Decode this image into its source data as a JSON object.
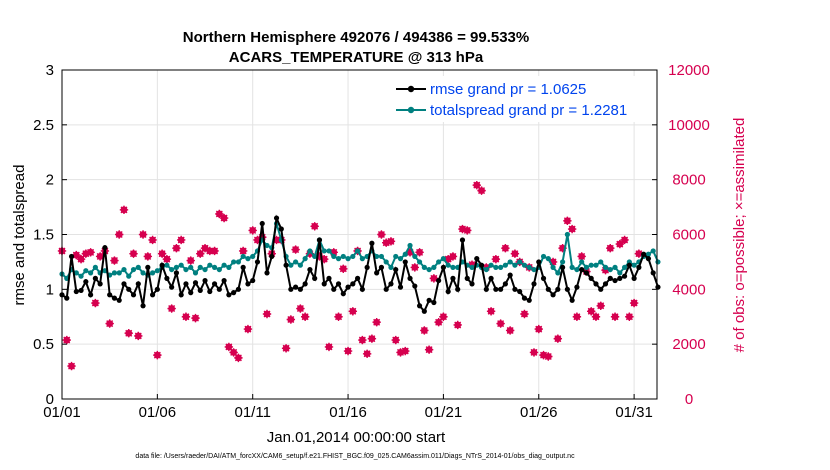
{
  "chart_data": {
    "type": "line",
    "title_line1": "Northern Hemisphere 492076 / 494386 = 99.533%",
    "title_line2": "ACARS_TEMPERATURE @ 313 hPa",
    "xlabel": "Jan.01,2014 00:00:00 start",
    "ylabel_left": "rmse and totalspread",
    "ylabel_right": "# of obs: o=possible; ×=assimilated",
    "footnote": "data file: /Users/raeder/DAI/ATM_forcXX/CAM6_setup/f.e21.FHIST_BGC.f09_025.CAM6assim.011/Diags_NTrS_2014-01/obs_diag_output.nc",
    "x_tick_labels": [
      "01/01",
      "01/06",
      "01/11",
      "01/16",
      "01/21",
      "01/26",
      "01/31"
    ],
    "x_tick_days": [
      1,
      6,
      11,
      16,
      21,
      26,
      31
    ],
    "xlim": [
      1,
      32.2
    ],
    "ylim_left": [
      0,
      3
    ],
    "left_ticks": [
      "0",
      "0.5",
      "1",
      "1.5",
      "2",
      "2.5",
      "3"
    ],
    "ylim_right": [
      0,
      12000
    ],
    "right_ticks": [
      "0",
      "2000",
      "4000",
      "6000",
      "8000",
      "10000",
      "12000"
    ],
    "colors": {
      "rmse": "#000000",
      "spread": "#008080",
      "obs": "#d6004f",
      "legend_text": "#0044ee"
    },
    "legend": {
      "rmse": "rmse grand pr = 1.0625",
      "spread": "totalspread grand pr = 1.2281"
    },
    "series": [
      {
        "name": "rmse",
        "values": [
          0.95,
          0.92,
          1.3,
          0.98,
          0.99,
          1.07,
          0.95,
          1.1,
          1.05,
          1.38,
          0.95,
          0.92,
          0.9,
          1.05,
          1.0,
          0.95,
          1.05,
          0.85,
          1.2,
          0.95,
          1.0,
          1.22,
          1.1,
          1.02,
          1.15,
          0.95,
          1.05,
          0.97,
          1.06,
          0.99,
          1.08,
          0.98,
          1.05,
          1.0,
          1.08,
          0.95,
          0.97,
          1.0,
          1.2,
          1.05,
          1.08,
          1.25,
          1.6,
          1.15,
          1.3,
          1.65,
          1.55,
          1.22,
          1.0,
          1.02,
          1.0,
          1.05,
          1.18,
          1.1,
          1.45,
          1.05,
          1.1,
          1.0,
          1.05,
          0.96,
          1.02,
          1.05,
          1.1,
          1.0,
          1.2,
          1.42,
          1.15,
          1.2,
          1.0,
          1.05,
          1.18,
          1.02,
          1.25,
          1.1,
          1.03,
          0.85,
          0.8,
          0.9,
          0.88,
          1.08,
          1.2,
          0.98,
          1.1,
          1.0,
          1.45,
          1.1,
          1.05,
          1.28,
          1.22,
          1.0,
          1.1,
          1.0,
          1.0,
          1.05,
          1.13,
          1.0,
          0.98,
          0.92,
          0.9,
          1.05,
          1.25,
          1.1,
          1.0,
          0.95,
          1.0,
          1.2,
          1.0,
          0.9,
          1.02,
          1.18,
          1.15,
          1.1,
          1.05,
          1.0,
          1.05,
          1.1,
          1.08,
          1.1,
          1.12,
          1.22,
          1.1,
          1.2,
          1.32,
          1.28,
          1.15,
          1.02
        ],
        "t_start": 1.0,
        "dt": 0.25
      },
      {
        "name": "totalspread",
        "values": [
          1.14,
          1.1,
          1.18,
          1.15,
          1.12,
          1.17,
          1.15,
          1.2,
          1.15,
          1.17,
          1.13,
          1.15,
          1.15,
          1.18,
          1.12,
          1.18,
          1.2,
          1.15,
          1.13,
          1.15,
          1.17,
          1.2,
          1.22,
          1.18,
          1.2,
          1.22,
          1.18,
          1.2,
          1.15,
          1.2,
          1.18,
          1.22,
          1.2,
          1.18,
          1.22,
          1.2,
          1.25,
          1.25,
          1.3,
          1.28,
          1.3,
          1.35,
          1.45,
          1.4,
          1.38,
          1.6,
          1.45,
          1.3,
          1.22,
          1.25,
          1.22,
          1.28,
          1.35,
          1.3,
          1.45,
          1.35,
          1.35,
          1.3,
          1.28,
          1.3,
          1.28,
          1.3,
          1.35,
          1.28,
          1.3,
          1.35,
          1.3,
          1.3,
          1.25,
          1.2,
          1.3,
          1.28,
          1.32,
          1.4,
          1.3,
          1.25,
          1.2,
          1.18,
          1.2,
          1.25,
          1.28,
          1.22,
          1.2,
          1.2,
          1.25,
          1.22,
          1.2,
          1.22,
          1.2,
          1.18,
          1.22,
          1.2,
          1.2,
          1.22,
          1.25,
          1.22,
          1.25,
          1.22,
          1.2,
          1.18,
          1.2,
          1.3,
          1.28,
          1.2,
          1.15,
          1.25,
          1.5,
          1.2,
          1.18,
          1.25,
          1.2,
          1.22,
          1.22,
          1.25,
          1.2,
          1.18,
          1.2,
          1.15,
          1.2,
          1.25,
          1.22,
          1.25,
          1.3,
          1.32,
          1.35,
          1.25
        ],
        "t_start": 1.0,
        "dt": 0.25
      },
      {
        "name": "obs_possible",
        "values": [
          5400,
          2150,
          1200,
          5250,
          5100,
          5300,
          5350,
          3500,
          5200,
          5400,
          2750,
          5050,
          6000,
          6900,
          2400,
          5300,
          2300,
          6000,
          5200,
          5800,
          1600,
          5300,
          5100,
          3300,
          5500,
          5800,
          3000,
          5050,
          2950,
          5300,
          5500,
          5400,
          5400,
          6750,
          6600,
          1900,
          1700,
          1500,
          5400,
          2550,
          6150,
          5800,
          5900,
          3100,
          5300,
          5800,
          5800,
          1850,
          2900,
          5450,
          3300,
          3000,
          5300,
          6300,
          5200,
          5100,
          1900,
          5350,
          3000,
          4750,
          1750,
          3200,
          5400,
          2150,
          1650,
          2200,
          2800,
          6000,
          5700,
          5750,
          2150,
          1700,
          1750,
          5350,
          4800,
          5350,
          2500,
          1800,
          4400,
          2800,
          3000,
          5100,
          5200,
          2700,
          6200,
          6150,
          4900,
          7800,
          7600,
          4800,
          3200,
          5100,
          2750,
          5500,
          2500,
          5300,
          5000,
          3100,
          4800,
          1700,
          2550,
          1600,
          1550,
          5000,
          2200,
          5500,
          6500,
          6200,
          3000,
          5200,
          4650,
          3200,
          3000,
          3400,
          4700,
          5500,
          3000,
          5650,
          5800,
          3000,
          3500,
          5300
        ],
        "t_start": 1.0,
        "dt": 0.25
      }
    ]
  }
}
